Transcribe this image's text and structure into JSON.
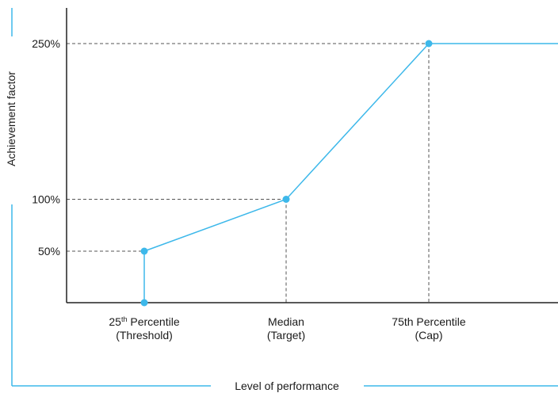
{
  "colors": {
    "series": "#3db8ea",
    "axis": "#222222",
    "guide": "#555555",
    "frame": "#3db8ea"
  },
  "chart_data": {
    "type": "line",
    "title": "",
    "xlabel": "Level of performance",
    "ylabel": "Achievement factor",
    "categories": [
      {
        "key": "p25",
        "line1": "25",
        "sup": "th",
        "line1_rest": " Percentile",
        "line2": "(Threshold)"
      },
      {
        "key": "median",
        "line1": "Median",
        "sup": "",
        "line1_rest": "",
        "line2": "(Target)"
      },
      {
        "key": "p75",
        "line1": "75th Percentile",
        "sup": "",
        "line1_rest": "",
        "line2": "(Cap)"
      }
    ],
    "y_ticks": [
      {
        "value": 50,
        "label": "50%"
      },
      {
        "value": 100,
        "label": "100%"
      },
      {
        "value": 250,
        "label": "250%"
      }
    ],
    "ylim": [
      -50,
      320
    ],
    "series": [
      {
        "values": [
          {
            "category": "p25",
            "y": -50
          },
          {
            "category": "p25",
            "y": 50
          },
          {
            "category": "median",
            "y": 100
          },
          {
            "category": "p75",
            "y": 250
          },
          {
            "category": "end",
            "y": 250
          }
        ],
        "markers": [
          {
            "category": "p25",
            "y": -50
          },
          {
            "category": "p25",
            "y": 50
          },
          {
            "category": "median",
            "y": 100
          },
          {
            "category": "p75",
            "y": 250
          }
        ]
      }
    ],
    "guides": [
      {
        "category": "p25",
        "y": 50
      },
      {
        "category": "median",
        "y": 100
      },
      {
        "category": "p75",
        "y": 250
      }
    ],
    "grid": false,
    "legend": "none"
  }
}
